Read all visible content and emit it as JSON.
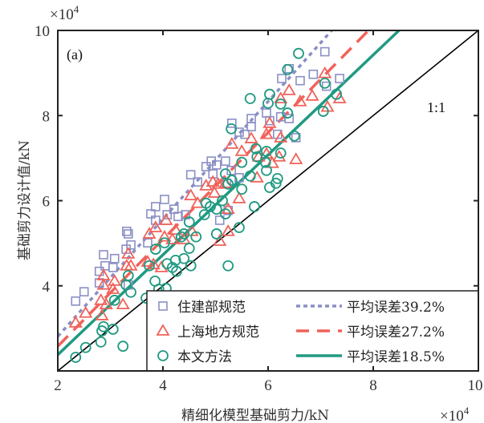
{
  "chart_data": {
    "type": "scatter",
    "panel_label": "(a)",
    "xlabel": "精细化模型基础剪力/kN",
    "ylabel": "基础剪力设计值/kN",
    "x_multiplier": "×10",
    "y_multiplier": "×10",
    "multiplier_exp": "4",
    "xlim": [
      2,
      10
    ],
    "ylim": [
      2,
      10
    ],
    "xticks": [
      "2",
      "4",
      "6",
      "8",
      "10"
    ],
    "yticks": [
      "4",
      "6",
      "8",
      "10"
    ],
    "xtick_values": [
      2,
      4,
      6,
      8,
      10
    ],
    "ytick_values": [
      4,
      6,
      8,
      10
    ],
    "reference_line": {
      "label": "1:1",
      "from": [
        2,
        2
      ],
      "to": [
        10,
        10
      ],
      "color": "#000000"
    },
    "legend_position": "bottom-right",
    "series": [
      {
        "name": "住建部规范",
        "marker": "square",
        "color": "#8a8fc4",
        "fit_label": "平均误差39.2%",
        "fit_style": "dotted",
        "fit": {
          "from": [
            2,
            2.81
          ],
          "to": [
            7.21,
            10
          ]
        },
        "points": [
          [
            7.08,
            9.5
          ],
          [
            6.4,
            9.1
          ],
          [
            6.26,
            8.87
          ],
          [
            6.61,
            8.82
          ],
          [
            6.86,
            8.97
          ],
          [
            7.36,
            8.87
          ],
          [
            7.11,
            8.69
          ],
          [
            5.68,
            7.93
          ],
          [
            5.97,
            8.06
          ],
          [
            6.03,
            7.88
          ],
          [
            6.24,
            7.97
          ],
          [
            6.4,
            7.93
          ],
          [
            5.31,
            7.82
          ],
          [
            5.45,
            7.61
          ],
          [
            5.56,
            7.56
          ],
          [
            5.68,
            7.74
          ],
          [
            6.18,
            7.56
          ],
          [
            6.53,
            7.48
          ],
          [
            4.92,
            6.93
          ],
          [
            4.82,
            6.8
          ],
          [
            5.02,
            6.84
          ],
          [
            5.19,
            6.93
          ],
          [
            5.3,
            6.71
          ],
          [
            4.53,
            6.61
          ],
          [
            4.66,
            6.44
          ],
          [
            4.95,
            6.63
          ],
          [
            5.21,
            6.41
          ],
          [
            5.45,
            6.54
          ],
          [
            3.86,
            5.86
          ],
          [
            4.03,
            6.03
          ],
          [
            3.77,
            5.69
          ],
          [
            3.86,
            5.54
          ],
          [
            4.21,
            5.8
          ],
          [
            4.08,
            5.67
          ],
          [
            4.29,
            5.63
          ],
          [
            4.43,
            5.67
          ],
          [
            5.08,
            5.54
          ],
          [
            5.24,
            5.77
          ],
          [
            3.31,
            5.28
          ],
          [
            3.34,
            5.22
          ],
          [
            3.71,
            5.01
          ],
          [
            3.39,
            4.96
          ],
          [
            3.3,
            4.86
          ],
          [
            2.87,
            4.73
          ],
          [
            3.08,
            4.64
          ],
          [
            2.9,
            4.47
          ],
          [
            3.05,
            4.43
          ],
          [
            2.79,
            4.34
          ],
          [
            2.79,
            4.07
          ],
          [
            2.5,
            3.86
          ],
          [
            2.34,
            3.64
          ],
          [
            3.34,
            4.02
          ]
        ]
      },
      {
        "name": "上海地方规范",
        "marker": "triangle",
        "color": "#f0625a",
        "fit_label": "平均误差27.2%",
        "fit_style": "dashed",
        "fit": {
          "from": [
            2,
            2.58
          ],
          "to": [
            7.91,
            10
          ]
        },
        "points": [
          [
            7.08,
            8.99
          ],
          [
            6.84,
            8.46
          ],
          [
            6.61,
            8.33
          ],
          [
            7.36,
            8.4
          ],
          [
            7.13,
            8.2
          ],
          [
            6.4,
            8.59
          ],
          [
            6.24,
            8.4
          ],
          [
            6.03,
            7.82
          ],
          [
            5.97,
            7.56
          ],
          [
            6.24,
            7.48
          ],
          [
            5.68,
            7.46
          ],
          [
            5.31,
            7.33
          ],
          [
            5.5,
            7.16
          ],
          [
            5.82,
            7.03
          ],
          [
            5.97,
            7.1
          ],
          [
            6.21,
            7.03
          ],
          [
            6.53,
            6.97
          ],
          [
            6.08,
            6.88
          ],
          [
            4.95,
            6.44
          ],
          [
            4.82,
            6.35
          ],
          [
            5.05,
            6.39
          ],
          [
            5.19,
            6.41
          ],
          [
            5.79,
            6.54
          ],
          [
            4.98,
            6.18
          ],
          [
            4.53,
            6.12
          ],
          [
            4.66,
            5.94
          ],
          [
            5.45,
            6.05
          ],
          [
            5.24,
            5.8
          ],
          [
            4.06,
            5.54
          ],
          [
            3.86,
            5.37
          ],
          [
            4.24,
            5.31
          ],
          [
            3.74,
            5.22
          ],
          [
            4.03,
            5.15
          ],
          [
            4.18,
            5.09
          ],
          [
            4.55,
            5.28
          ],
          [
            4.4,
            5.09
          ],
          [
            5.24,
            5.28
          ],
          [
            5.08,
            5.05
          ],
          [
            3.34,
            4.75
          ],
          [
            3.31,
            4.47
          ],
          [
            3.39,
            4.47
          ],
          [
            3.71,
            4.56
          ],
          [
            3.97,
            4.43
          ],
          [
            3.82,
            4.5
          ],
          [
            2.87,
            4.24
          ],
          [
            3.08,
            4.11
          ],
          [
            3.05,
            3.92
          ],
          [
            2.87,
            4.02
          ],
          [
            2.82,
            3.66
          ],
          [
            2.92,
            3.56
          ],
          [
            3.24,
            3.56
          ],
          [
            2.53,
            3.36
          ],
          [
            2.34,
            3.13
          ],
          [
            2.84,
            3.3
          ]
        ]
      },
      {
        "name": "本文方法",
        "marker": "circle",
        "color": "#1f9a82",
        "fit_label": "平均误差18.5%",
        "fit_style": "solid",
        "fit": {
          "from": [
            2,
            2.38
          ],
          "to": [
            8.49,
            10
          ]
        },
        "points": [
          [
            6.58,
            9.46
          ],
          [
            6.37,
            9.08
          ],
          [
            7.08,
            8.76
          ],
          [
            5.66,
            8.4
          ],
          [
            6.03,
            8.5
          ],
          [
            6.0,
            8.29
          ],
          [
            6.24,
            8.27
          ],
          [
            6.37,
            8.06
          ],
          [
            7.3,
            8.5
          ],
          [
            7.05,
            8.1
          ],
          [
            6.5,
            7.52
          ],
          [
            5.3,
            7.69
          ],
          [
            5.77,
            7.22
          ],
          [
            5.97,
            7.16
          ],
          [
            5.79,
            7.03
          ],
          [
            6.24,
            7.12
          ],
          [
            5.5,
            6.9
          ],
          [
            5.95,
            6.9
          ],
          [
            5.97,
            6.71
          ],
          [
            5.19,
            6.63
          ],
          [
            5.66,
            6.58
          ],
          [
            5.31,
            6.48
          ],
          [
            5.24,
            6.39
          ],
          [
            5.5,
            6.27
          ],
          [
            6.18,
            6.52
          ],
          [
            6.03,
            6.31
          ],
          [
            6.15,
            6.41
          ],
          [
            4.82,
            5.94
          ],
          [
            4.9,
            5.86
          ],
          [
            5.13,
            6.0
          ],
          [
            4.79,
            5.67
          ],
          [
            5.02,
            5.8
          ],
          [
            5.19,
            5.69
          ],
          [
            5.74,
            5.86
          ],
          [
            4.5,
            5.5
          ],
          [
            5.45,
            5.37
          ],
          [
            5.02,
            5.22
          ],
          [
            4.35,
            5.15
          ],
          [
            4.4,
            5.22
          ],
          [
            4.63,
            5.15
          ],
          [
            4.03,
            5.01
          ],
          [
            3.86,
            4.86
          ],
          [
            4.5,
            4.88
          ],
          [
            4.4,
            4.64
          ],
          [
            4.08,
            4.52
          ],
          [
            4.24,
            4.6
          ],
          [
            4.18,
            4.43
          ],
          [
            4.53,
            4.47
          ],
          [
            3.74,
            4.47
          ],
          [
            4.26,
            4.34
          ],
          [
            5.24,
            4.47
          ],
          [
            3.34,
            4.24
          ],
          [
            3.85,
            4.11
          ],
          [
            3.3,
            4.02
          ],
          [
            3.39,
            3.85
          ],
          [
            3.92,
            3.92
          ],
          [
            4.06,
            3.94
          ],
          [
            3.08,
            3.66
          ],
          [
            3.68,
            3.71
          ],
          [
            3.86,
            3.69
          ],
          [
            4.08,
            3.66
          ],
          [
            2.87,
            3.04
          ],
          [
            2.84,
            2.94
          ],
          [
            3.05,
            2.98
          ],
          [
            2.82,
            2.68
          ],
          [
            2.53,
            2.55
          ],
          [
            3.24,
            2.58
          ],
          [
            2.34,
            2.32
          ]
        ]
      }
    ]
  }
}
